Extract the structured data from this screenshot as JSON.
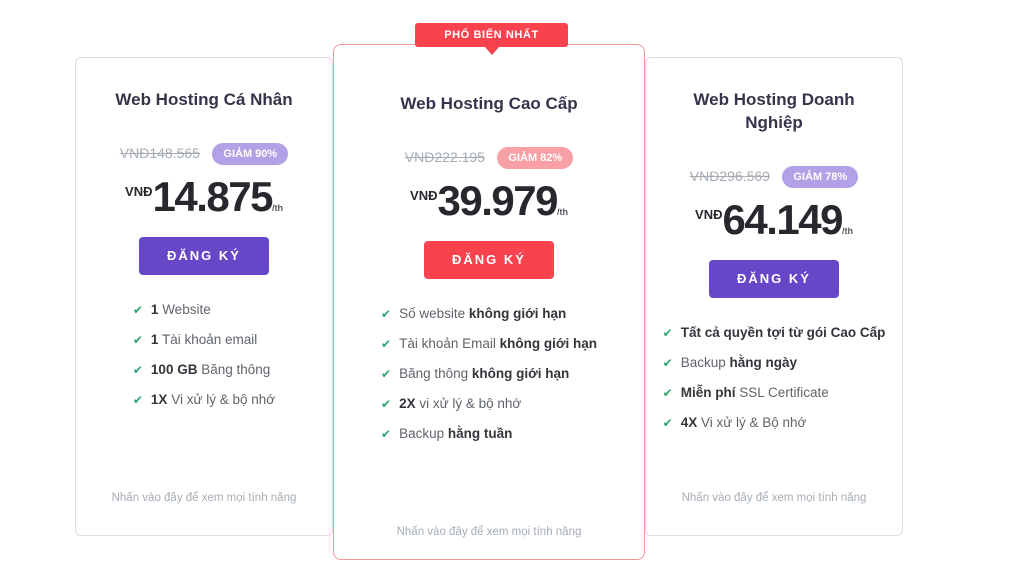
{
  "popular_badge": {
    "label": "PHỔ BIẾN NHẤT"
  },
  "colors": {
    "red": "#f8424e",
    "purple": "#6747c8",
    "light_purple_badge": "#b2a1e6",
    "pink_badge": "#f8a0a6",
    "green_check": "#2aa56d",
    "title_text": "#36344b",
    "muted_text": "#a6adb6"
  },
  "plans": [
    {
      "name": "Web Hosting Cá Nhân",
      "old_price": "VNĐ148.565",
      "discount": "GIẢM 90%",
      "currency": "VNĐ",
      "price": "14.875",
      "period": "/th",
      "cta": "ĐĂNG KÝ",
      "features": [
        {
          "pre": "",
          "bold": "1",
          "post": " Website"
        },
        {
          "pre": "",
          "bold": "1",
          "post": " Tài khoản email"
        },
        {
          "pre": "",
          "bold": "100 GB",
          "post": " Băng thông"
        },
        {
          "pre": "",
          "bold": "1X",
          "post": " Vi xử lý & bộ nhớ"
        }
      ],
      "footer_link": "Nhấn vào đây để xem mọi tính năng"
    },
    {
      "name": "Web Hosting Cao Cấp",
      "old_price": "VNĐ222.195",
      "discount": "GIẢM 82%",
      "currency": "VNĐ",
      "price": "39.979",
      "period": "/th",
      "cta": "ĐĂNG KÝ",
      "features": [
        {
          "pre": "Số website ",
          "bold": "không giới hạn",
          "post": ""
        },
        {
          "pre": "Tài khoản Email ",
          "bold": "không giới hạn",
          "post": ""
        },
        {
          "pre": "Băng thông ",
          "bold": "không giới hạn",
          "post": ""
        },
        {
          "pre": "",
          "bold": "2X",
          "post": " vi xử lý & bộ nhớ"
        },
        {
          "pre": "Backup ",
          "bold": "hằng tuần",
          "post": ""
        }
      ],
      "footer_link": "Nhấn vào đây để xem mọi tính năng"
    },
    {
      "name": "Web Hosting Doanh Nghiệp",
      "old_price": "VNĐ296.569",
      "discount": "GIẢM 78%",
      "currency": "VNĐ",
      "price": "64.149",
      "period": "/th",
      "cta": "ĐĂNG KÝ",
      "features": [
        {
          "pre": "",
          "bold": "Tất cả quyền tợi từ gói Cao Cấp",
          "post": ""
        },
        {
          "pre": "Backup ",
          "bold": "hằng ngày",
          "post": ""
        },
        {
          "pre": "",
          "bold": "Miễn phí",
          "post": " SSL Certificate"
        },
        {
          "pre": "",
          "bold": "4X",
          "post": " Vi xử lý & Bộ nhớ"
        }
      ],
      "footer_link": "Nhấn vào đây để xem mọi tính năng"
    }
  ]
}
